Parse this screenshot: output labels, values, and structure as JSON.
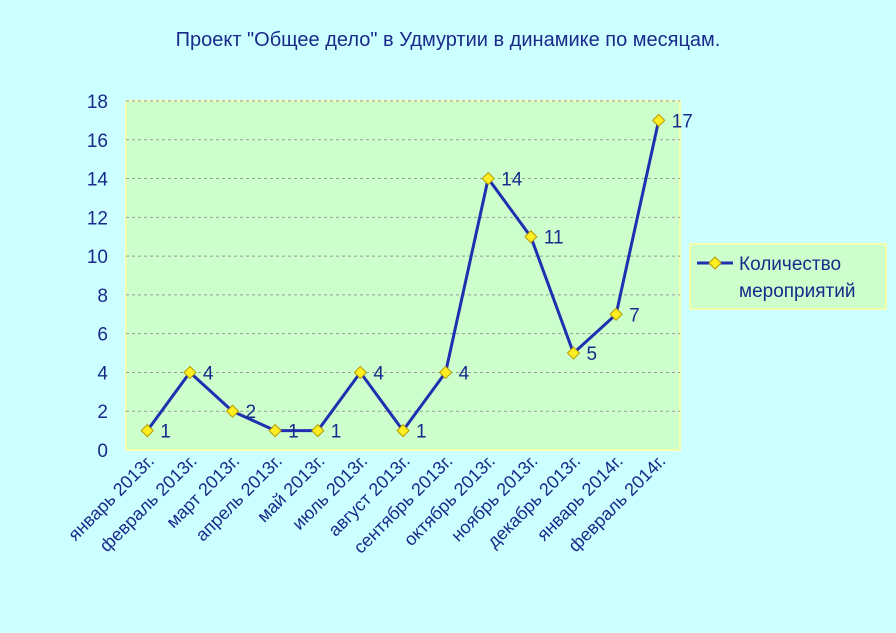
{
  "chart_data": {
    "type": "line",
    "title": "Проект \"Общее дело\" в Удмуртии в динамике по месяцам.",
    "categories": [
      "январь 2013г.",
      "февраль 2013г.",
      "март 2013г.",
      "апрель 2013г.",
      "май 2013г.",
      "июль 2013г.",
      "август 2013г.",
      "сентябрь 2013г.",
      "октябрь 2013г.",
      "ноябрь 2013г.",
      "декабрь 2013г.",
      "январь 2014г.",
      "февраль 2014г."
    ],
    "series": [
      {
        "name": "Количество мероприятий",
        "values": [
          1,
          4,
          2,
          1,
          1,
          4,
          1,
          4,
          14,
          11,
          5,
          7,
          17
        ],
        "color": "#1f2fb0",
        "marker_color": "#ffee22",
        "marker": "diamond"
      }
    ],
    "ylim": [
      0,
      18
    ],
    "yticks": [
      "0",
      "2",
      "4",
      "6",
      "8",
      "10",
      "12",
      "14",
      "16",
      "18"
    ],
    "grid": true,
    "legend": "right",
    "xlabel": "",
    "ylabel": "",
    "colors": {
      "background": "#ccffff",
      "plot_area": "#ccffcc",
      "border": "#ffff99",
      "grid": "#999999",
      "text": "#1a2a8a"
    }
  }
}
